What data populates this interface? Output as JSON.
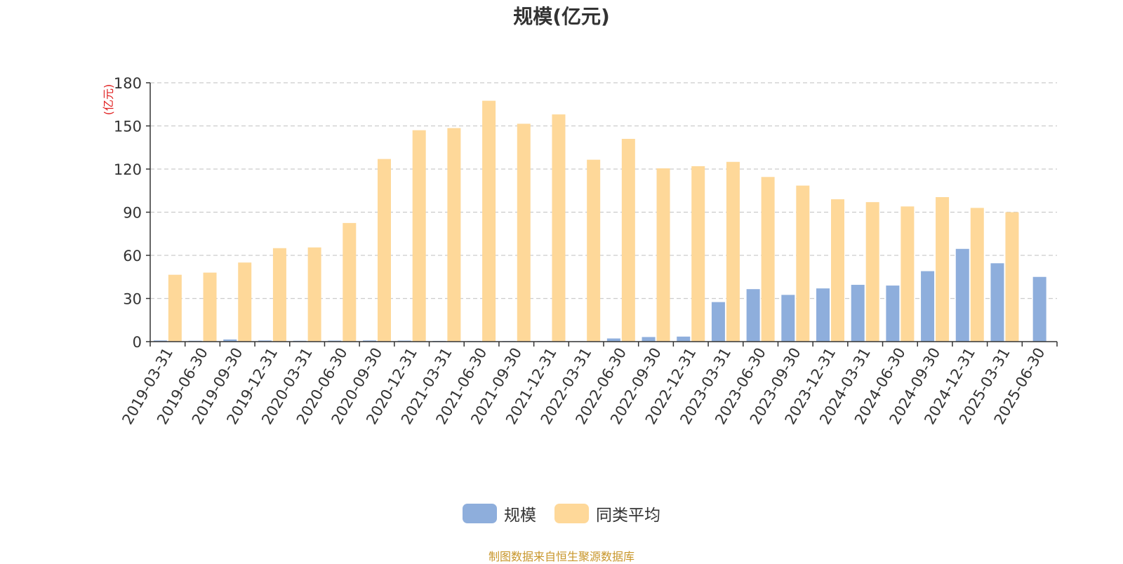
{
  "title": "规模(亿元)",
  "source": "制图数据来自恒生聚源数据库",
  "colors": {
    "series0": "#8eaedc",
    "series1": "#fed899",
    "axis": "#333333",
    "grid": "#cccccc",
    "unit": "#e02020"
  },
  "chart_data": {
    "type": "bar",
    "title": "规模(亿元)",
    "ylabel": "(亿元)",
    "ylim": [
      0,
      180
    ],
    "yticks": [
      0,
      30,
      60,
      90,
      120,
      150,
      180
    ],
    "grid": true,
    "legend_position": "bottom-center",
    "categories": [
      "2019-03-31",
      "2019-06-30",
      "2019-09-30",
      "2019-12-31",
      "2020-03-31",
      "2020-06-30",
      "2020-09-30",
      "2020-12-31",
      "2021-03-31",
      "2021-06-30",
      "2021-09-30",
      "2021-12-31",
      "2022-03-31",
      "2022-06-30",
      "2022-09-30",
      "2022-12-31",
      "2023-03-31",
      "2023-06-30",
      "2023-09-30",
      "2023-12-31",
      "2024-03-31",
      "2024-06-30",
      "2024-09-30",
      "2024-12-31",
      "2025-03-31",
      "2025-06-30"
    ],
    "series": [
      {
        "name": "规模",
        "values": [
          0.8,
          0.6,
          1.5,
          0.8,
          0.6,
          0.7,
          0.8,
          0.7,
          0.5,
          0.4,
          0.4,
          0.4,
          0.3,
          2.2,
          3.2,
          3.5,
          27.5,
          36.5,
          32.5,
          37.0,
          39.5,
          39.0,
          49.0,
          64.5,
          54.5,
          45.0
        ]
      },
      {
        "name": "同类平均",
        "values": [
          46.5,
          48.0,
          55.0,
          65.0,
          65.5,
          82.5,
          127.0,
          147.0,
          148.5,
          167.5,
          151.5,
          158.0,
          126.5,
          141.0,
          120.5,
          122.0,
          125.0,
          114.5,
          108.5,
          99.0,
          97.0,
          94.0,
          100.5,
          93.0,
          90.0,
          null
        ]
      }
    ]
  }
}
